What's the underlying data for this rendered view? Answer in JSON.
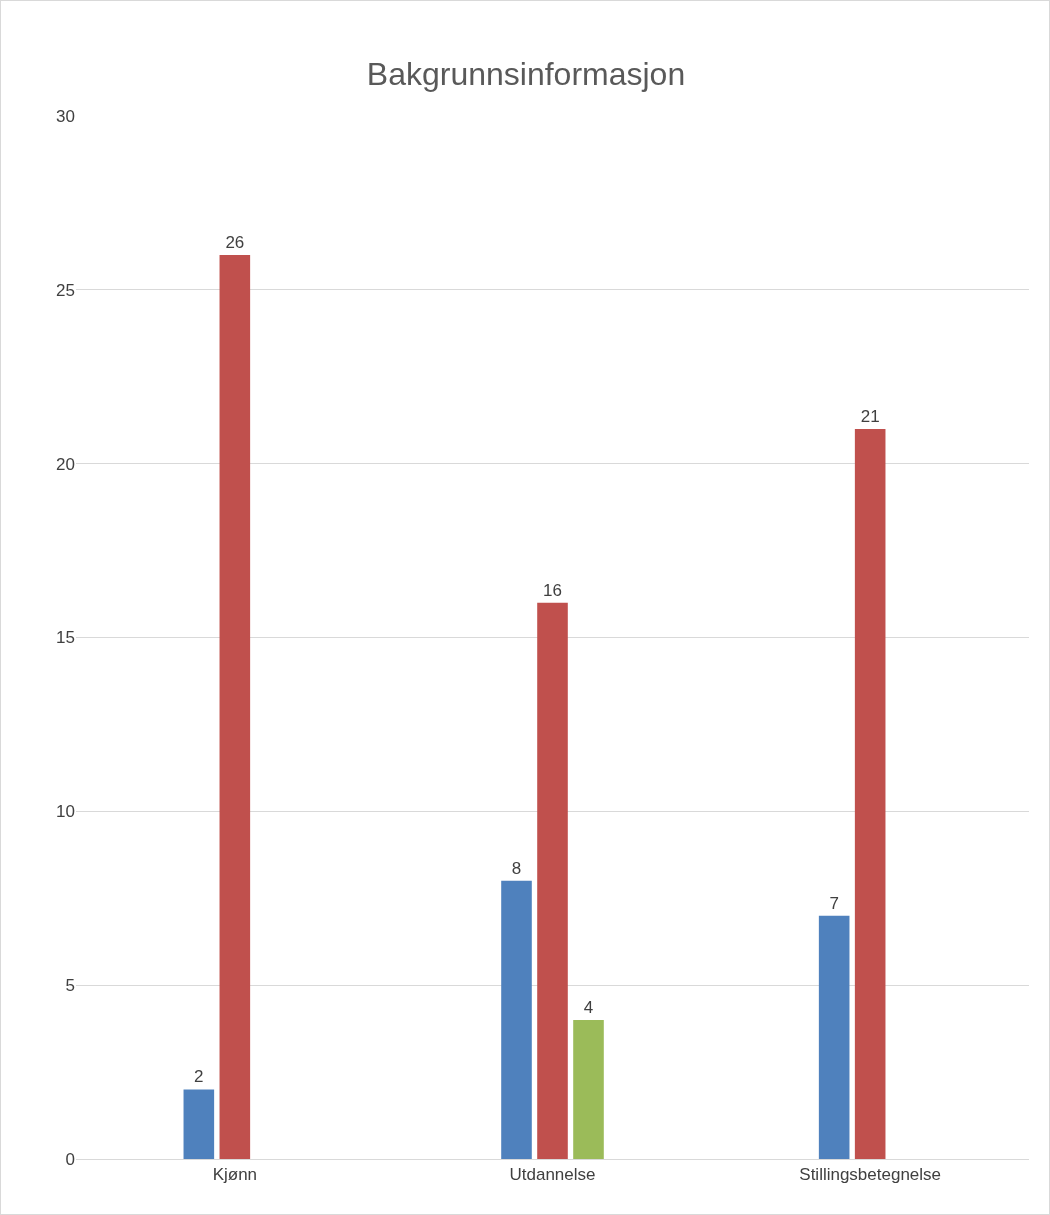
{
  "chart_data": {
    "type": "bar",
    "title": "Bakgrunnsinformasjon",
    "categories": [
      "Kjønn",
      "Utdannelse",
      "Stillingsbetegnelse"
    ],
    "series": [
      {
        "color": "#4f81bd",
        "values": [
          2,
          8,
          7
        ]
      },
      {
        "color": "#c0504d",
        "values": [
          26,
          16,
          21
        ]
      },
      {
        "color": "#9bbb59",
        "values": [
          null,
          4,
          null
        ]
      }
    ],
    "ylim": [
      0,
      30
    ],
    "yticks": [
      0,
      5,
      10,
      15,
      20,
      25,
      30
    ],
    "grid": "y",
    "data_labels": true
  }
}
